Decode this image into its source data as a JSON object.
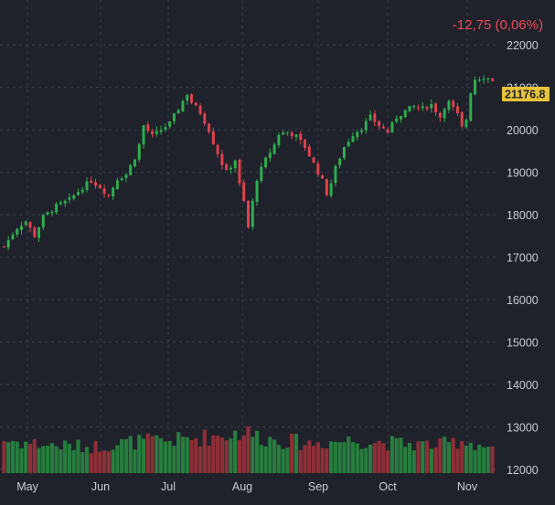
{
  "chart_data": {
    "type": "candlestick",
    "change_text": "-12,75 (0,06%)",
    "last_price_label": "21176.8",
    "y_ticks": [
      12000,
      13000,
      14000,
      15000,
      16000,
      17000,
      18000,
      19000,
      20000,
      21000,
      22000
    ],
    "y_tick_labels": [
      "12000",
      "13000",
      "14000",
      "15000",
      "16000",
      "17000",
      "18000",
      "19000",
      "20000",
      "21000",
      "22000"
    ],
    "ylim": [
      12000,
      22650
    ],
    "x_months": [
      "May",
      "Jun",
      "Jul",
      "Aug",
      "Sep",
      "Oct",
      "Nov"
    ],
    "grid": true,
    "series_name": "",
    "price_path": [
      [
        0,
        17250
      ],
      [
        3,
        17700
      ],
      [
        5,
        17850
      ],
      [
        7,
        17500
      ],
      [
        9,
        17950
      ],
      [
        12,
        18200
      ],
      [
        15,
        18350
      ],
      [
        18,
        18650
      ],
      [
        20,
        18800
      ],
      [
        22,
        18650
      ],
      [
        24,
        18450
      ],
      [
        26,
        18850
      ],
      [
        28,
        18950
      ],
      [
        30,
        19350
      ],
      [
        31,
        19650
      ],
      [
        32,
        20100
      ],
      [
        34,
        19850
      ],
      [
        36,
        20000
      ],
      [
        38,
        20150
      ],
      [
        40,
        20500
      ],
      [
        42,
        20850
      ],
      [
        43,
        20650
      ],
      [
        45,
        20400
      ],
      [
        47,
        20000
      ],
      [
        48,
        19700
      ],
      [
        50,
        19200
      ],
      [
        51,
        19000
      ],
      [
        53,
        19300
      ],
      [
        54,
        18700
      ],
      [
        55,
        18300
      ],
      [
        56,
        17700
      ],
      [
        57,
        18300
      ],
      [
        58,
        18850
      ],
      [
        60,
        19300
      ],
      [
        62,
        19650
      ],
      [
        63,
        19900
      ],
      [
        65,
        19950
      ],
      [
        67,
        19850
      ],
      [
        69,
        19600
      ],
      [
        71,
        19200
      ],
      [
        73,
        18800
      ],
      [
        74,
        18500
      ],
      [
        75,
        18750
      ],
      [
        76,
        19100
      ],
      [
        78,
        19600
      ],
      [
        80,
        19900
      ],
      [
        82,
        20050
      ],
      [
        84,
        20300
      ],
      [
        86,
        20100
      ],
      [
        88,
        19950
      ],
      [
        90,
        20300
      ],
      [
        92,
        20450
      ],
      [
        94,
        20550
      ],
      [
        96,
        20500
      ],
      [
        98,
        20600
      ],
      [
        100,
        20300
      ],
      [
        101,
        20550
      ],
      [
        102,
        20650
      ],
      [
        104,
        20350
      ],
      [
        105,
        20050
      ],
      [
        106,
        20250
      ],
      [
        107,
        20900
      ],
      [
        108,
        21200
      ],
      [
        110,
        21250
      ],
      [
        112,
        21180
      ]
    ],
    "volume_path": [
      [
        0,
        1
      ],
      [
        10,
        0.85
      ],
      [
        20,
        0.8
      ],
      [
        30,
        0.95
      ],
      [
        40,
        1.0
      ],
      [
        50,
        1.15
      ],
      [
        55,
        1.25
      ],
      [
        60,
        1.05
      ],
      [
        70,
        0.9
      ],
      [
        80,
        1.0
      ],
      [
        90,
        0.9
      ],
      [
        100,
        0.85
      ],
      [
        105,
        1.0
      ],
      [
        112,
        0.75
      ]
    ]
  }
}
